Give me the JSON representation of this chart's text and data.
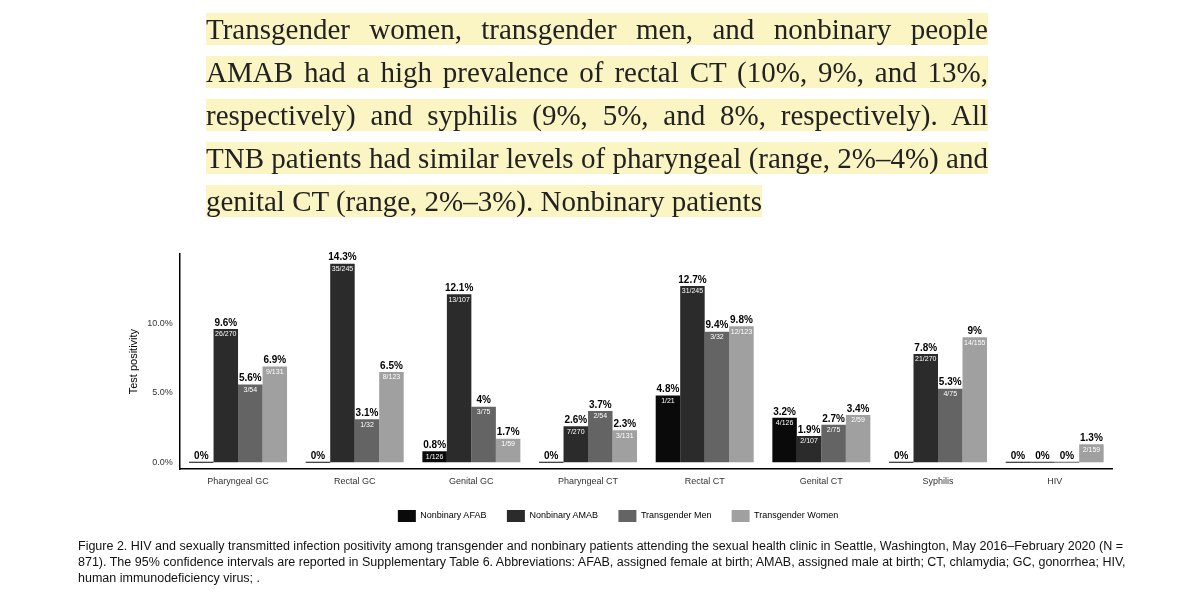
{
  "chart_data": {
    "type": "bar",
    "subtitle": "Transgender women, transgender men, and nonbinary people AMAB had a high prevalence of rectal CT (10%, 9%, and 13%, respectively) and syphilis (9%, 5%, and 8%, respectively). All TNB patients had similar levels of pharyngeal (range, 2%–4%) and genital CT (range, 2%–3%). Nonbinary patients",
    "ylabel": "Test positivity",
    "categories": [
      "Pharyngeal GC",
      "Rectal GC",
      "Genital GC",
      "Pharyngeal CT",
      "Rectal CT",
      "Genital CT",
      "Syphilis",
      "HIV"
    ],
    "series": [
      {
        "name": "Nonbinary AFAB",
        "color": "#0a0a0a",
        "values": [
          0,
          0,
          0.8,
          0,
          4.8,
          3.2,
          0,
          0
        ],
        "value_labels": [
          "0%",
          "0%",
          "0.8%",
          "0%",
          "4.8%",
          "3.2%",
          "0%",
          "0%"
        ]
      },
      {
        "name": "Nonbinary AMAB",
        "color": "#2b2b2b",
        "values": [
          9.6,
          14.3,
          12.1,
          2.6,
          12.7,
          1.9,
          7.8,
          0
        ],
        "value_labels": [
          "9.6%",
          "14.3%",
          "12.1%",
          "2.6%",
          "12.7%",
          "1.9%",
          "7.8%",
          "0%"
        ]
      },
      {
        "name": "Transgender Men",
        "color": "#646464",
        "values": [
          5.6,
          3.1,
          4,
          3.7,
          9.4,
          2.7,
          5.3,
          0
        ],
        "value_labels": [
          "5.6%",
          "3.1%",
          "4%",
          "3.7%",
          "9.4%",
          "2.7%",
          "5.3%",
          "0%"
        ]
      },
      {
        "name": "Transgender Women",
        "color": "#a0a0a0",
        "values": [
          6.9,
          6.5,
          1.7,
          2.3,
          9.8,
          3.4,
          9,
          1.3
        ],
        "value_labels": [
          "6.9%",
          "6.5%",
          "1.7%",
          "2.3%",
          "9.8%",
          "3.4%",
          "9%",
          "1.3%"
        ]
      }
    ],
    "annotations": [
      "26/270",
      "3/54",
      "9/131",
      "35/245",
      "1/32",
      "8/123",
      "1/126",
      "13/107",
      "3/75",
      "1/59",
      "7/270",
      "2/54",
      "3/131",
      "1/21",
      "31/245",
      "3/32",
      "12/123",
      "4/126",
      "2/107",
      "2/75",
      "2/59",
      "21/270",
      "4/75",
      "14/155",
      "2/159"
    ],
    "title": "Figure 2. HIV and sexually transmitted infection positivity among transgender and nonbinary patients attending the sexual health clinic in Seattle, Washington, May 2016–February 2020 (N = 871). The 95% confidence intervals are reported in Supplementary Table 6. Abbreviations: AFAB, assigned female at birth; AMAB, assigned male at birth; CT, chlamydia; GC, gonorrhea; HIV, human immunodeficiency virus; .",
    "ylim": [
      -0.5,
      15
    ],
    "yticks": [
      {
        "value": 0,
        "label": "0.0%"
      },
      {
        "value": 5,
        "label": "5.0%"
      },
      {
        "value": 10,
        "label": "10.0%"
      }
    ],
    "grid": false,
    "legend": "bottom"
  }
}
